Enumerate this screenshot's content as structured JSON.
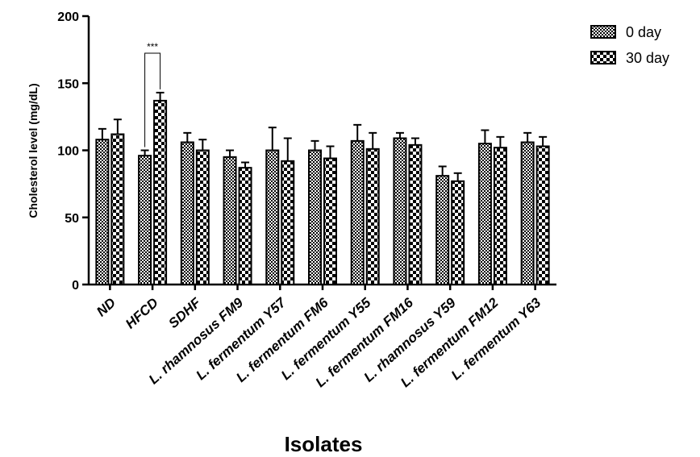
{
  "chart_data": {
    "type": "bar",
    "xlabel": "Isolates",
    "ylabel": "Cholesterol level (mg/dL)",
    "ylim": [
      0,
      200
    ],
    "yticks": [
      0,
      50,
      100,
      150,
      200
    ],
    "categories": [
      "ND",
      "HFCD",
      "SDHF",
      "L. rhamnosus FM9",
      "L. fermentum Y57",
      "L. fermentum FM6",
      "L. fermentum Y55",
      "L. fermentum FM16",
      "L. rhamnosus Y59",
      "L. fermentum FM12",
      "L. fermentum Y63"
    ],
    "series": [
      {
        "name": "0 day",
        "pattern": "fine-check",
        "values": [
          108,
          96,
          106,
          95,
          100,
          100,
          107,
          109,
          81,
          105,
          106
        ],
        "errors": [
          8,
          4,
          7,
          5,
          17,
          7,
          12,
          4,
          7,
          10,
          7
        ]
      },
      {
        "name": "30 day",
        "pattern": "coarse-check",
        "values": [
          112,
          137,
          100,
          87,
          92,
          94,
          101,
          104,
          77,
          102,
          103
        ],
        "errors": [
          11,
          6,
          8,
          4,
          17,
          9,
          12,
          5,
          6,
          8,
          7
        ]
      }
    ],
    "annotations": [
      {
        "text": "***",
        "between": [
          "HFCD:0 day",
          "HFCD:30 day"
        ]
      }
    ],
    "legend_position": "top-right",
    "grid": false
  }
}
